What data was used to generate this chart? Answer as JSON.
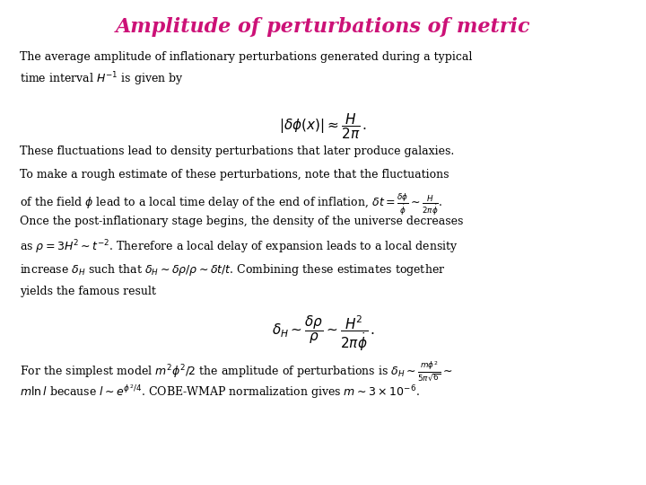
{
  "title": "Amplitude of perturbations of metric",
  "title_color": "#CC1177",
  "title_fontsize": 16,
  "body_fontsize": 9.0,
  "eq_fontsize": 11,
  "bg_color": "#ffffff",
  "text_color": "#000000",
  "fig_width": 7.2,
  "fig_height": 5.4,
  "dpi": 100,
  "paragraph1": "The average amplitude of inflationary perturbations generated during a typical\ntime interval $H^{-1}$ is given by",
  "equation1": "$|\\delta\\phi(x)| \\approx \\dfrac{H}{2\\pi}\\,.$",
  "paragraph2_l1": "These fluctuations lead to density perturbations that later produce galaxies.",
  "paragraph2_l2": "To make a rough estimate of these perturbations, note that the fluctuations",
  "paragraph2_l3": "of the field $\\phi$ lead to a local time delay of the end of inflation, $\\delta t = \\frac{\\delta\\phi}{\\dot{\\phi}} \\sim \\frac{H}{2\\pi\\dot{\\phi}}$.",
  "paragraph2_l4": "Once the post-inflationary stage begins, the density of the universe decreases",
  "paragraph2_l5": "as $\\rho = 3H^2 \\sim t^{-2}$. Therefore a local delay of expansion leads to a local density",
  "paragraph2_l6": "increase $\\delta_H$ such that $\\delta_H \\sim \\delta\\rho/\\rho \\sim \\delta t/t$. Combining these estimates together",
  "paragraph2_l7": "yields the famous result",
  "equation2": "$\\delta_H \\sim \\dfrac{\\delta\\rho}{\\rho} \\sim \\dfrac{H^2}{2\\pi\\dot{\\phi}}\\,.$",
  "paragraph3_l1": "For the simplest model $m^2\\phi^2/2$ the amplitude of perturbations is $\\delta_H \\sim \\frac{m\\phi^2}{5\\pi\\sqrt{6}} \\sim$",
  "paragraph3_l2": "$m\\ln l$ because $l \\sim e^{\\phi^2/4}$. COBE-WMAP normalization gives $m \\sim 3 \\times 10^{-6}$."
}
